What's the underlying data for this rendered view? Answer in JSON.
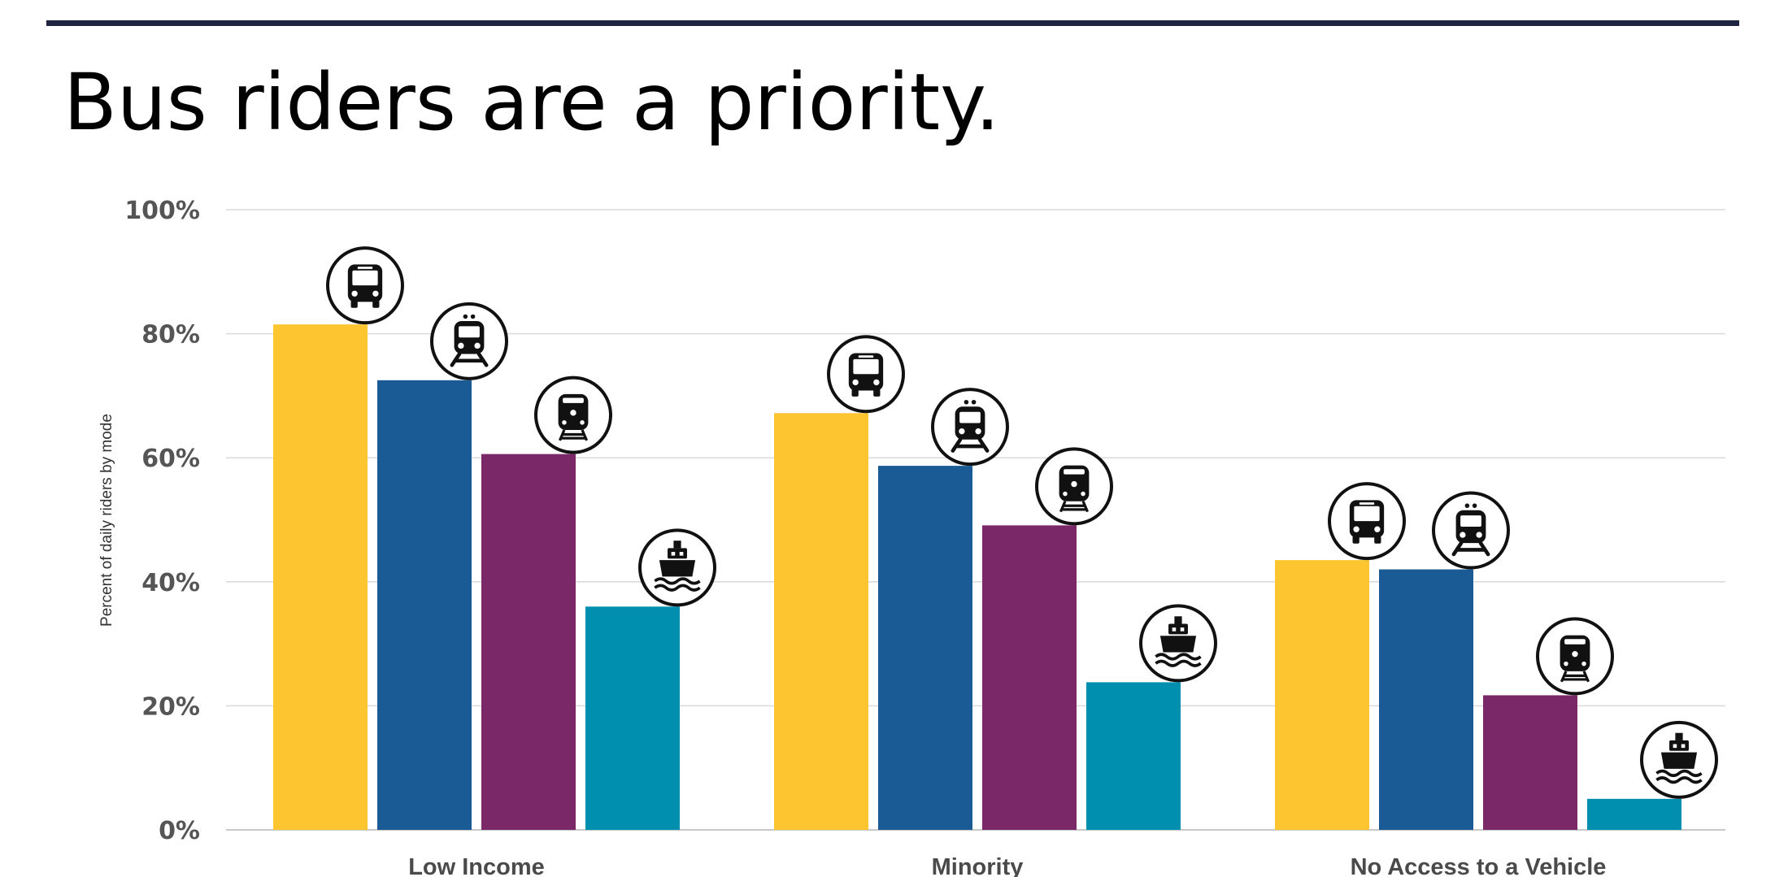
{
  "page": {
    "title": "Bus riders are a priority."
  },
  "chart_data": {
    "type": "bar",
    "title": "Bus riders are a priority.",
    "ylabel": "Percent of daily riders by mode",
    "xlabel": "",
    "ylim": [
      0,
      100
    ],
    "yticks": [
      0,
      20,
      40,
      60,
      80,
      100
    ],
    "ytick_labels": [
      "0%",
      "20%",
      "40%",
      "60%",
      "80%",
      "100%"
    ],
    "grid": true,
    "categories": [
      "Low Income",
      "Minority",
      "No Access to a Vehicle"
    ],
    "series": [
      {
        "icon": "bus-icon",
        "color": "#fdc630",
        "values": [
          81.5,
          67.2,
          43.5
        ]
      },
      {
        "icon": "light-rail-icon",
        "color": "#1a5b96",
        "values": [
          72.5,
          58.7,
          42.0
        ]
      },
      {
        "icon": "train-icon",
        "color": "#7b2868",
        "values": [
          60.6,
          49.1,
          21.7
        ]
      },
      {
        "icon": "ferry-icon",
        "color": "#008fae",
        "values": [
          36.0,
          23.8,
          5.0
        ]
      }
    ]
  }
}
